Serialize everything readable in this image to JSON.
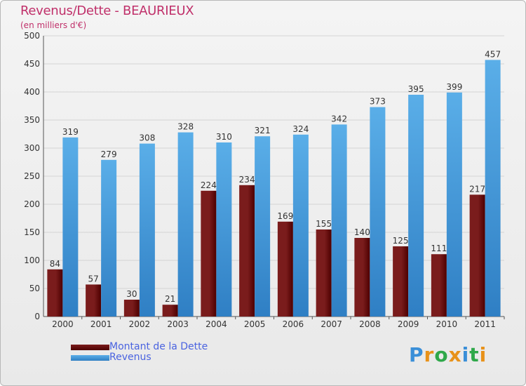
{
  "title": "Revenus/Dette - BEAURIEUX",
  "subtitle": "(en milliers d'€)",
  "legend": {
    "debt": "Montant de la Dette",
    "revenue": "Revenus"
  },
  "logo_text": "Proxiti",
  "colors": {
    "debt": "#7a1c1c",
    "debt_dark": "#4d0000",
    "revenue": "#5aaee8",
    "revenue_dark": "#2f7fc4",
    "title": "#c0306a",
    "grid": "#d4d4d4"
  },
  "chart_data": {
    "type": "bar",
    "categories": [
      "2000",
      "2001",
      "2002",
      "2003",
      "2004",
      "2005",
      "2006",
      "2007",
      "2008",
      "2009",
      "2010",
      "2011"
    ],
    "series": [
      {
        "name": "Montant de la Dette",
        "values": [
          84,
          57,
          30,
          21,
          224,
          234,
          169,
          155,
          140,
          125,
          111,
          217
        ]
      },
      {
        "name": "Revenus",
        "values": [
          319,
          279,
          308,
          328,
          310,
          321,
          324,
          342,
          373,
          395,
          399,
          457
        ]
      }
    ],
    "title": "Revenus/Dette - BEAURIEUX",
    "ylim": [
      0,
      500
    ],
    "yticks": [
      0,
      50,
      100,
      150,
      200,
      250,
      300,
      350,
      400,
      450,
      500
    ],
    "grid": true,
    "legend_position": "bottom-left"
  }
}
